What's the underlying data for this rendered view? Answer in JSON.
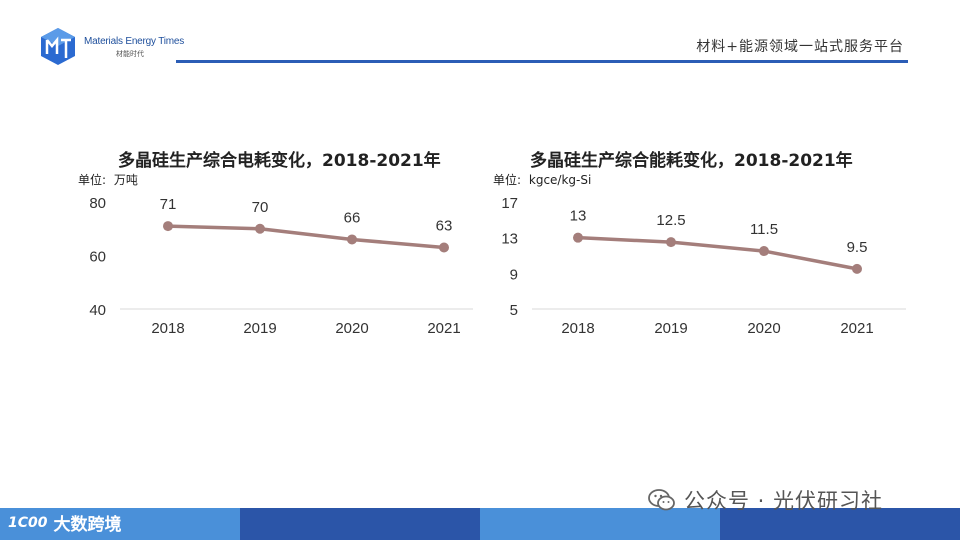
{
  "header": {
    "logo_en": "Materials Energy Times",
    "logo_cn": "材能时代",
    "tagline": "材料+能源领域一站式服务平台"
  },
  "chart_data": [
    {
      "type": "line",
      "title": "多晶硅生产综合电耗变化，2018-2021年",
      "unit_label": "单位:",
      "unit": "万吨",
      "categories": [
        "2018",
        "2019",
        "2020",
        "2021"
      ],
      "values": [
        71,
        70,
        66,
        63
      ],
      "value_labels": [
        "71",
        "70",
        "66",
        "63"
      ],
      "ylim": [
        40,
        80
      ],
      "yticks": [
        40,
        60,
        80
      ],
      "grid": false,
      "color": "#a47e7b"
    },
    {
      "type": "line",
      "title": "多晶硅生产综合能耗变化，2018-2021年",
      "unit_label": "单位:",
      "unit": "kgce/kg-Si",
      "categories": [
        "2018",
        "2019",
        "2020",
        "2021"
      ],
      "values": [
        13,
        12.5,
        11.5,
        9.5
      ],
      "value_labels": [
        "13",
        "12.5",
        "11.5",
        "9.5"
      ],
      "ylim": [
        5,
        17
      ],
      "yticks": [
        5,
        9,
        13,
        17
      ],
      "grid": false,
      "color": "#a47e7b"
    }
  ],
  "footer": {
    "brand_mark": "1C00",
    "brand_text": "大数跨境",
    "watermark": "公众号 · 光伏研习社",
    "colors": [
      "#4a90d9",
      "#2b55a8",
      "#4a90d9",
      "#2b55a8"
    ]
  }
}
